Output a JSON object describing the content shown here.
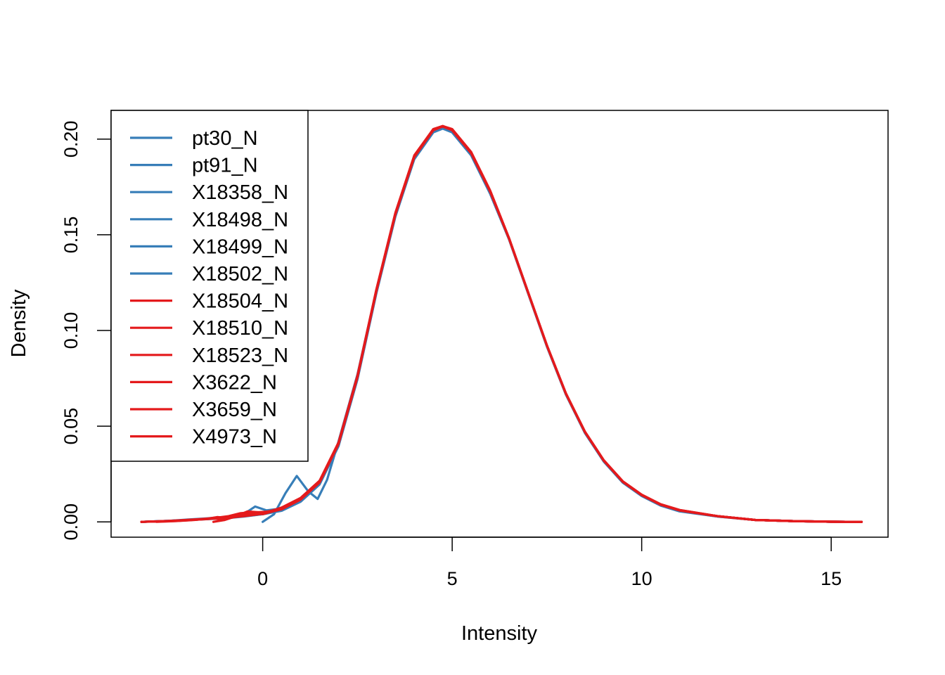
{
  "chart_data": {
    "type": "line",
    "title": "",
    "xlabel": "Intensity",
    "ylabel": "Density",
    "xlim": [
      -4.0,
      16.5
    ],
    "ylim": [
      -0.008,
      0.215
    ],
    "x_ticks": [
      0,
      5,
      10,
      15
    ],
    "y_ticks": [
      0.0,
      0.05,
      0.1,
      0.15,
      0.2
    ],
    "x_tick_labels": [
      "0",
      "5",
      "10",
      "15"
    ],
    "y_tick_labels": [
      "0.00",
      "0.05",
      "0.10",
      "0.15",
      "0.20"
    ],
    "grid": false,
    "legend_position": "top-left",
    "colors": {
      "blue": "#377EB8",
      "red": "#E41A1C"
    },
    "series": [
      {
        "name": "pt30_N",
        "color": "#377EB8",
        "x": [
          -3.2,
          -2.5,
          -2.0,
          -1.5,
          -1.0,
          -0.5,
          0.0,
          0.5,
          1.0,
          1.5,
          2.0,
          2.5,
          3.0,
          3.5,
          4.0,
          4.5,
          4.75,
          5.0,
          5.5,
          6.0,
          6.5,
          7.0,
          7.5,
          8.0,
          8.5,
          9.0,
          9.5,
          10.0,
          10.5,
          11.0,
          12.0,
          13.0,
          14.0,
          15.0,
          15.8
        ],
        "y": [
          0.0,
          0.0005,
          0.001,
          0.0015,
          0.002,
          0.003,
          0.004,
          0.006,
          0.011,
          0.02,
          0.04,
          0.075,
          0.12,
          0.16,
          0.19,
          0.204,
          0.206,
          0.204,
          0.192,
          0.172,
          0.148,
          0.12,
          0.092,
          0.067,
          0.047,
          0.032,
          0.021,
          0.014,
          0.009,
          0.006,
          0.003,
          0.001,
          0.0004,
          0.0001,
          0.0
        ]
      },
      {
        "name": "pt91_N",
        "color": "#377EB8",
        "x": [
          -3.2,
          -2.5,
          -2.0,
          -1.5,
          -1.0,
          -0.5,
          -0.2,
          0.1,
          0.5,
          1.0,
          1.5,
          2.0,
          2.5,
          3.0,
          3.5,
          4.0,
          4.5,
          4.75,
          5.0,
          5.5,
          6.0,
          6.5,
          7.0,
          7.5,
          8.0,
          8.5,
          9.0,
          9.5,
          10.0,
          10.5,
          11.0,
          12.0,
          13.0,
          14.0,
          15.0,
          15.8
        ],
        "y": [
          0.0,
          0.0005,
          0.001,
          0.0015,
          0.002,
          0.004,
          0.008,
          0.006,
          0.007,
          0.011,
          0.02,
          0.04,
          0.075,
          0.12,
          0.16,
          0.19,
          0.204,
          0.206,
          0.204,
          0.192,
          0.172,
          0.148,
          0.12,
          0.092,
          0.067,
          0.047,
          0.032,
          0.021,
          0.014,
          0.009,
          0.006,
          0.003,
          0.001,
          0.0004,
          0.0001,
          0.0
        ]
      },
      {
        "name": "X18358_N",
        "color": "#377EB8",
        "x": [
          0.0,
          0.3,
          0.6,
          0.9,
          1.2,
          1.45,
          1.7,
          2.0,
          2.5,
          3.0,
          3.5,
          4.0,
          4.5,
          4.75,
          5.0,
          5.5,
          6.0,
          6.5,
          7.0,
          7.5,
          8.0,
          8.5,
          9.0,
          9.5,
          10.0,
          10.5,
          11.0,
          12.0,
          13.0,
          14.0,
          15.0,
          15.8
        ],
        "y": [
          0.0,
          0.004,
          0.015,
          0.024,
          0.016,
          0.012,
          0.022,
          0.042,
          0.077,
          0.121,
          0.161,
          0.19,
          0.204,
          0.206,
          0.204,
          0.192,
          0.172,
          0.148,
          0.12,
          0.092,
          0.067,
          0.047,
          0.032,
          0.021,
          0.014,
          0.009,
          0.006,
          0.003,
          0.001,
          0.0004,
          0.0001,
          0.0
        ]
      },
      {
        "name": "X18498_N",
        "color": "#377EB8",
        "x": [
          -3.2,
          -2.5,
          -2.0,
          -1.5,
          -1.0,
          -0.5,
          0.0,
          0.5,
          1.0,
          1.5,
          2.0,
          2.5,
          3.0,
          3.5,
          4.0,
          4.5,
          4.75,
          5.0,
          5.5,
          6.0,
          6.5,
          7.0,
          7.5,
          8.0,
          8.5,
          9.0,
          9.5,
          10.0,
          10.5,
          11.0,
          12.0,
          13.0,
          14.0,
          15.0,
          15.8
        ],
        "y": [
          0.0,
          0.0004,
          0.001,
          0.0015,
          0.0022,
          0.003,
          0.0045,
          0.0065,
          0.0115,
          0.0205,
          0.0405,
          0.0755,
          0.1205,
          0.1605,
          0.1905,
          0.2045,
          0.2065,
          0.2045,
          0.1925,
          0.1725,
          0.148,
          0.12,
          0.092,
          0.067,
          0.047,
          0.032,
          0.021,
          0.014,
          0.009,
          0.006,
          0.003,
          0.001,
          0.0004,
          0.0001,
          0.0
        ]
      },
      {
        "name": "X18499_N",
        "color": "#377EB8",
        "x": [
          -3.2,
          -2.5,
          -2.0,
          -1.5,
          -1.0,
          -0.5,
          0.0,
          0.5,
          1.0,
          1.5,
          2.0,
          2.5,
          3.0,
          3.5,
          4.0,
          4.5,
          4.75,
          5.0,
          5.5,
          6.0,
          6.5,
          7.0,
          7.5,
          8.0,
          8.5,
          9.0,
          9.5,
          10.0,
          10.5,
          11.0,
          12.0,
          13.0,
          14.0,
          15.0,
          15.8
        ],
        "y": [
          0.0,
          0.0005,
          0.0012,
          0.0018,
          0.0025,
          0.0035,
          0.0045,
          0.0062,
          0.0108,
          0.0198,
          0.0398,
          0.0748,
          0.1198,
          0.1598,
          0.1898,
          0.2038,
          0.2058,
          0.2038,
          0.1918,
          0.1718,
          0.1478,
          0.1198,
          0.0918,
          0.0668,
          0.0468,
          0.0318,
          0.0208,
          0.0138,
          0.0088,
          0.0058,
          0.0028,
          0.001,
          0.0004,
          0.0001,
          0.0
        ]
      },
      {
        "name": "X18502_N",
        "color": "#377EB8",
        "x": [
          -3.2,
          -2.5,
          -2.0,
          -1.5,
          -1.0,
          -0.5,
          0.0,
          0.5,
          1.0,
          1.5,
          2.0,
          2.5,
          3.0,
          3.5,
          4.0,
          4.5,
          4.75,
          5.0,
          5.5,
          6.0,
          6.5,
          7.0,
          7.5,
          8.0,
          8.5,
          9.0,
          9.5,
          10.0,
          10.5,
          11.0,
          12.0,
          13.0,
          14.0,
          15.0,
          15.8
        ],
        "y": [
          0.0,
          0.0005,
          0.0009,
          0.0014,
          0.0019,
          0.0028,
          0.004,
          0.0058,
          0.0105,
          0.0195,
          0.0395,
          0.0745,
          0.1195,
          0.1595,
          0.1895,
          0.2035,
          0.2055,
          0.2035,
          0.1915,
          0.1715,
          0.1475,
          0.1195,
          0.0915,
          0.0665,
          0.0465,
          0.0315,
          0.0205,
          0.0135,
          0.0085,
          0.0055,
          0.0028,
          0.001,
          0.0004,
          0.0001,
          0.0
        ]
      },
      {
        "name": "X18504_N",
        "color": "#E41A1C",
        "x": [
          -3.2,
          -2.5,
          -2.0,
          -1.5,
          -1.2,
          -0.9,
          -0.6,
          -0.3,
          0.0,
          0.5,
          1.0,
          1.5,
          2.0,
          2.5,
          3.0,
          3.5,
          4.0,
          4.5,
          4.75,
          5.0,
          5.5,
          6.0,
          6.5,
          7.0,
          7.5,
          8.0,
          8.5,
          9.0,
          9.5,
          10.0,
          10.5,
          11.0,
          12.0,
          13.0,
          14.0,
          15.0,
          15.8
        ],
        "y": [
          0.0,
          0.0005,
          0.001,
          0.0015,
          0.0022,
          0.003,
          0.0045,
          0.005,
          0.0045,
          0.007,
          0.012,
          0.021,
          0.041,
          0.076,
          0.121,
          0.161,
          0.191,
          0.205,
          0.2065,
          0.205,
          0.193,
          0.173,
          0.148,
          0.12,
          0.092,
          0.067,
          0.047,
          0.032,
          0.021,
          0.014,
          0.009,
          0.006,
          0.003,
          0.001,
          0.0004,
          0.0001,
          0.0
        ]
      },
      {
        "name": "X18510_N",
        "color": "#E41A1C",
        "x": [
          -3.2,
          -2.5,
          -2.0,
          -1.6,
          -1.3,
          -1.0,
          -0.6,
          -0.3,
          0.0,
          0.5,
          1.0,
          1.5,
          2.0,
          2.5,
          3.0,
          3.5,
          4.0,
          4.5,
          4.75,
          5.0,
          5.5,
          6.0,
          6.5,
          7.0,
          7.5,
          8.0,
          8.5,
          9.0,
          9.5,
          10.0,
          10.5,
          11.0,
          12.0,
          13.0,
          14.0,
          15.0,
          15.8
        ],
        "y": [
          0.0,
          0.0004,
          0.001,
          0.0015,
          0.002,
          0.0015,
          0.003,
          0.005,
          0.004,
          0.0068,
          0.0118,
          0.0208,
          0.0408,
          0.0758,
          0.1208,
          0.1608,
          0.1908,
          0.2048,
          0.2068,
          0.2048,
          0.1928,
          0.1728,
          0.148,
          0.12,
          0.092,
          0.067,
          0.047,
          0.032,
          0.021,
          0.014,
          0.009,
          0.006,
          0.003,
          0.001,
          0.0004,
          0.0001,
          0.0
        ]
      },
      {
        "name": "X18523_N",
        "color": "#E41A1C",
        "x": [
          -1.3,
          -1.0,
          -0.7,
          -0.4,
          -0.1,
          0.2,
          0.5,
          1.0,
          1.5,
          2.0,
          2.5,
          3.0,
          3.5,
          4.0,
          4.5,
          4.75,
          5.0,
          5.5,
          6.0,
          6.5,
          7.0,
          7.5,
          8.0,
          8.5,
          9.0,
          9.5,
          10.0,
          10.5,
          11.0,
          12.0,
          13.0,
          14.0,
          15.0,
          15.8
        ],
        "y": [
          0.0,
          0.001,
          0.003,
          0.0055,
          0.005,
          0.0055,
          0.0075,
          0.0125,
          0.0215,
          0.0415,
          0.0765,
          0.1215,
          0.1615,
          0.1915,
          0.2052,
          0.2068,
          0.2052,
          0.1932,
          0.1732,
          0.1482,
          0.1202,
          0.0922,
          0.0672,
          0.0472,
          0.0322,
          0.0212,
          0.0142,
          0.0092,
          0.0062,
          0.003,
          0.001,
          0.0004,
          0.0001,
          0.0
        ]
      },
      {
        "name": "X3622_N",
        "color": "#E41A1C",
        "x": [
          -3.2,
          -2.5,
          -2.0,
          -1.5,
          -1.2,
          -0.9,
          -0.5,
          -0.2,
          0.1,
          0.5,
          1.0,
          1.5,
          2.0,
          2.5,
          3.0,
          3.5,
          4.0,
          4.5,
          4.75,
          5.0,
          5.5,
          6.0,
          6.5,
          7.0,
          7.5,
          8.0,
          8.5,
          9.0,
          9.5,
          10.0,
          10.5,
          11.0,
          12.0,
          13.0,
          14.0,
          15.0,
          15.8
        ],
        "y": [
          0.0,
          0.0003,
          0.0008,
          0.0015,
          0.0025,
          0.002,
          0.0035,
          0.005,
          0.0052,
          0.0072,
          0.0122,
          0.0212,
          0.0412,
          0.0762,
          0.1212,
          0.1612,
          0.1912,
          0.2052,
          0.2068,
          0.2052,
          0.1932,
          0.1732,
          0.1482,
          0.1202,
          0.0922,
          0.0672,
          0.0472,
          0.0322,
          0.0212,
          0.0142,
          0.0092,
          0.0062,
          0.003,
          0.001,
          0.0004,
          0.0001,
          0.0
        ]
      },
      {
        "name": "X3659_N",
        "color": "#E41A1C",
        "x": [
          -3.2,
          -2.5,
          -2.0,
          -1.5,
          -1.0,
          -0.5,
          0.0,
          0.5,
          1.0,
          1.5,
          2.0,
          2.5,
          3.0,
          3.5,
          4.0,
          4.5,
          4.75,
          5.0,
          5.5,
          6.0,
          6.5,
          7.0,
          7.5,
          8.0,
          8.5,
          9.0,
          9.5,
          10.0,
          10.5,
          11.0,
          12.0,
          13.0,
          14.0,
          15.0,
          15.8
        ],
        "y": [
          0.0,
          0.0004,
          0.0009,
          0.0014,
          0.0021,
          0.003,
          0.0042,
          0.0066,
          0.0116,
          0.0206,
          0.0406,
          0.0756,
          0.1206,
          0.1606,
          0.1906,
          0.2046,
          0.2066,
          0.2046,
          0.1926,
          0.1726,
          0.148,
          0.12,
          0.092,
          0.067,
          0.047,
          0.032,
          0.021,
          0.014,
          0.009,
          0.006,
          0.003,
          0.001,
          0.0004,
          0.0001,
          0.0
        ]
      },
      {
        "name": "X4973_N",
        "color": "#E41A1C",
        "x": [
          -2.8,
          -2.3,
          -1.8,
          -1.4,
          -1.1,
          -0.8,
          -0.4,
          0.0,
          0.5,
          1.0,
          1.5,
          2.0,
          2.5,
          3.0,
          3.5,
          4.0,
          4.5,
          4.75,
          5.0,
          5.5,
          6.0,
          6.5,
          7.0,
          7.5,
          8.0,
          8.5,
          9.0,
          9.5,
          10.0,
          10.5,
          11.0,
          12.0,
          13.0,
          14.0,
          15.0,
          15.8
        ],
        "y": [
          0.0,
          0.0004,
          0.001,
          0.0018,
          0.0015,
          0.0025,
          0.004,
          0.0045,
          0.0069,
          0.0119,
          0.0209,
          0.0409,
          0.0759,
          0.1209,
          0.1609,
          0.1909,
          0.2049,
          0.2067,
          0.2049,
          0.1929,
          0.1729,
          0.148,
          0.12,
          0.092,
          0.067,
          0.047,
          0.032,
          0.021,
          0.014,
          0.009,
          0.006,
          0.003,
          0.001,
          0.0004,
          0.0001,
          0.0
        ]
      }
    ]
  }
}
